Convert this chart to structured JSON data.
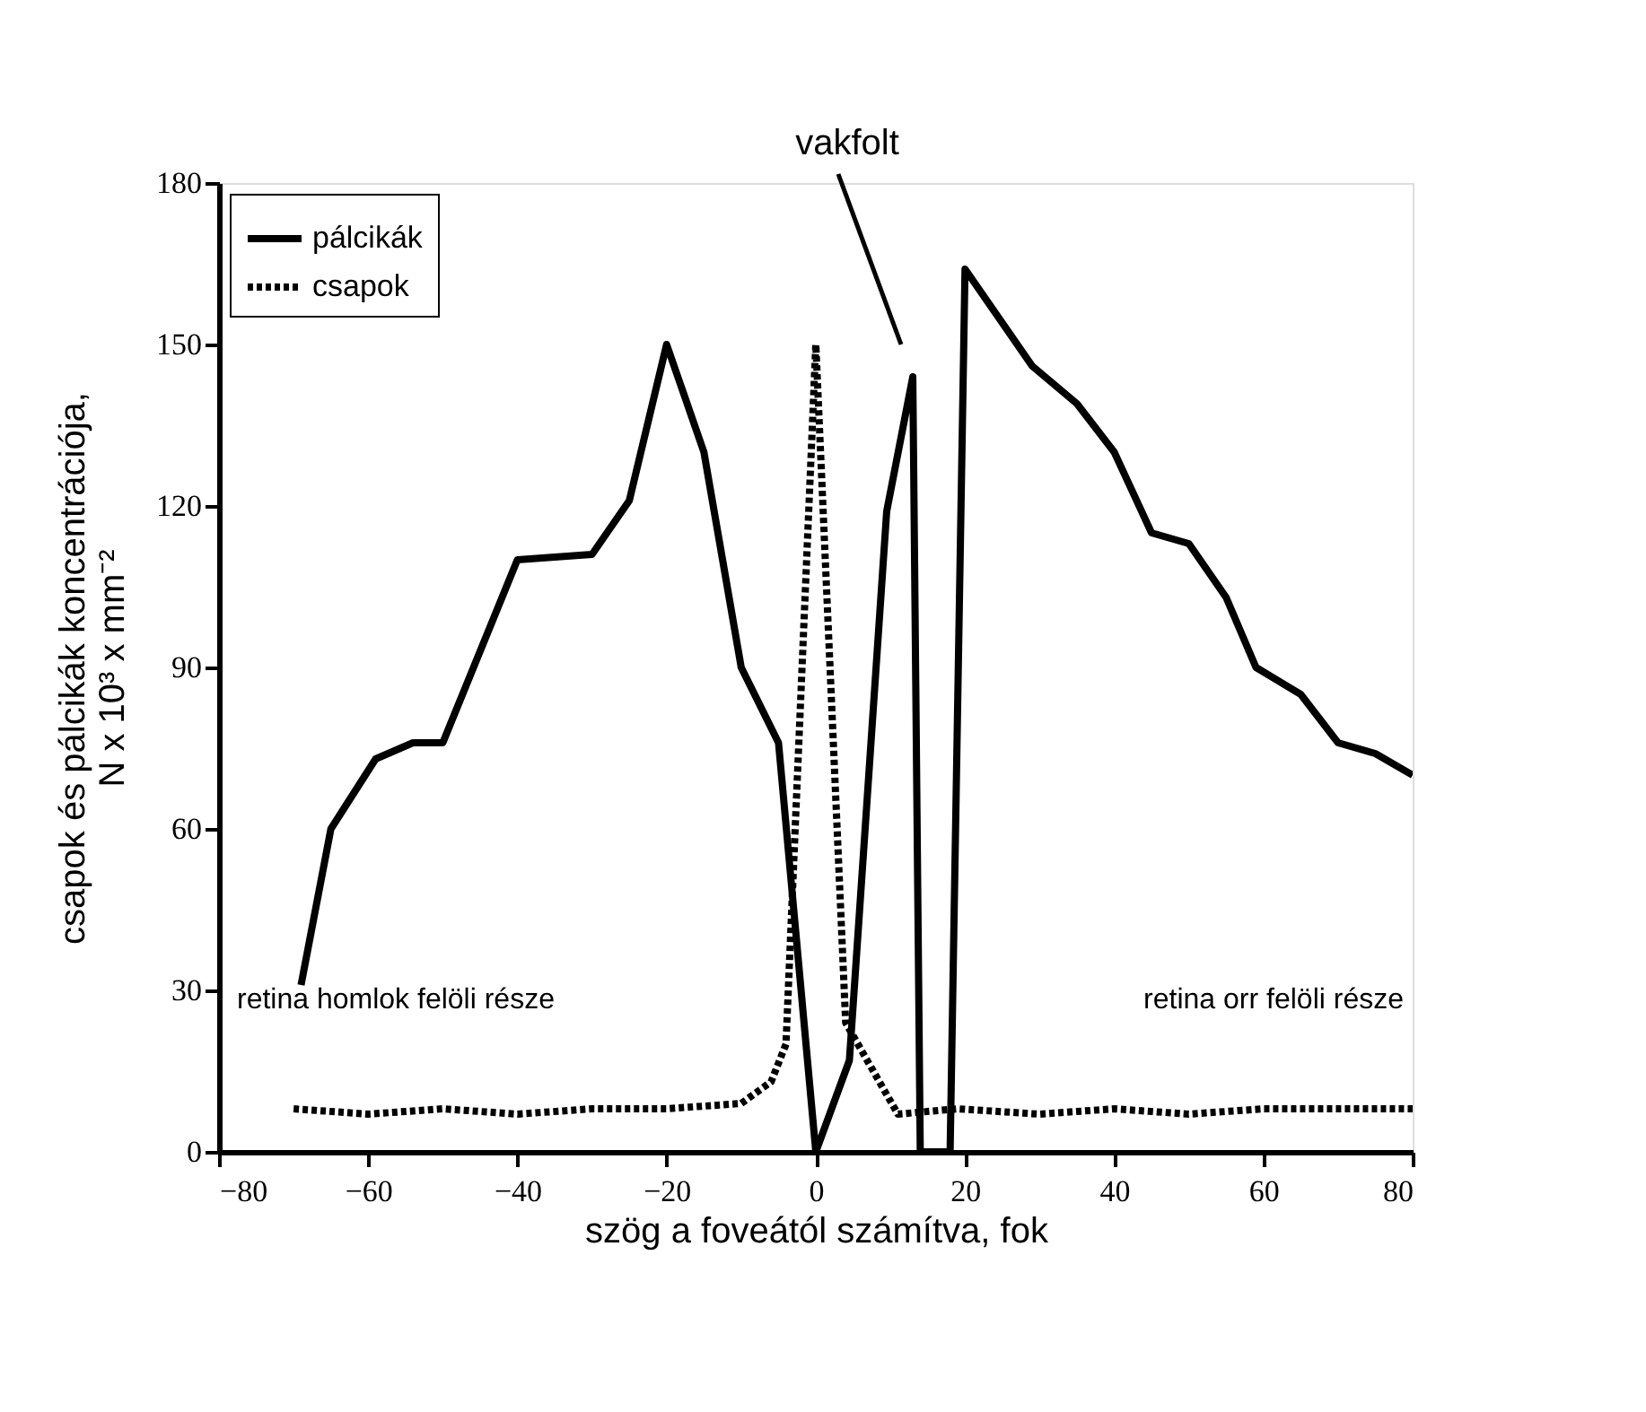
{
  "chart_data": {
    "type": "line",
    "xlabel": "szög a foveától számítva, fok",
    "ylabel": [
      "csapok és pálcikák koncentrációja,",
      "N x 10³ x mm⁻²"
    ],
    "xlim": [
      -80,
      80
    ],
    "xticks": [
      -80,
      -60,
      -40,
      -20,
      0,
      20,
      40,
      60,
      80
    ],
    "ylim": [
      0,
      180
    ],
    "yticks": [
      0,
      30,
      60,
      90,
      120,
      150,
      180
    ],
    "grid": false,
    "legend": "top left",
    "marker": "none",
    "series": [
      {
        "name": "pálcikák",
        "color": "#000000",
        "line_style": "solid",
        "x": [
          -69,
          -65,
          -59,
          -54,
          -50,
          -40,
          -30,
          -25,
          -20,
          -15,
          -10,
          -5,
          0,
          4.5,
          9.5,
          13,
          14,
          18,
          20,
          29,
          35,
          40,
          45,
          50,
          55,
          59,
          65,
          70,
          75,
          80
        ],
        "values": [
          31,
          60,
          73,
          76,
          76,
          110,
          111,
          121,
          150,
          130,
          90,
          76,
          0,
          17,
          119,
          144,
          0,
          0,
          164,
          146,
          139,
          130,
          115,
          113,
          103,
          90,
          85,
          76,
          74,
          70
        ]
      },
      {
        "name": "csapok",
        "color": "#000000",
        "line_style": "dotted",
        "x": [
          -70,
          -60,
          -50,
          -40,
          -30,
          -20,
          -10,
          -6,
          -4,
          0,
          4,
          11,
          19,
          30,
          40,
          50,
          60,
          70,
          80
        ],
        "values": [
          8,
          7,
          8,
          7,
          8,
          8,
          9,
          13,
          20,
          150,
          24,
          7,
          8,
          7,
          8,
          7,
          8,
          8,
          8
        ]
      }
    ],
    "annotations": [
      "vakfolt",
      "retina homlok felöli része",
      "retina orr felöli része"
    ]
  }
}
